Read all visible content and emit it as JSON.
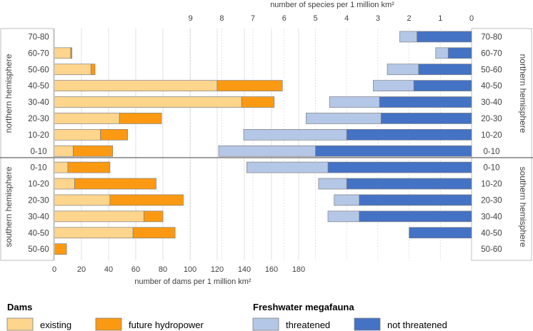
{
  "colors": {
    "existing": "#fdd58d",
    "future": "#fb9a12",
    "threatened": "#b4c7e7",
    "not_threatened": "#4472c4",
    "border": "#7f7f7f"
  },
  "chart_data": {
    "type": "bar",
    "categories": [
      "70-80",
      "60-70",
      "50-60",
      "40-50",
      "30-40",
      "20-30",
      "10-20",
      "0-10",
      "0-10",
      "10-20",
      "20-30",
      "30-40",
      "40-50",
      "50-60"
    ],
    "groups": [
      {
        "name": "northern hemisphere",
        "categories": [
          "70-80",
          "60-70",
          "50-60",
          "40-50",
          "30-40",
          "20-30",
          "10-20",
          "0-10"
        ]
      },
      {
        "name": "southern hemisphere",
        "categories": [
          "0-10",
          "10-20",
          "20-30",
          "30-40",
          "40-50",
          "50-60"
        ]
      }
    ],
    "dams": {
      "axis_label": "number of dams per 1 million km²",
      "xlim": [
        0,
        180
      ],
      "ticks": [
        "0",
        "20",
        "40",
        "60",
        "80",
        "100",
        "120",
        "140",
        "160",
        "180"
      ],
      "legend_title": "Dams",
      "series": [
        {
          "name": "existing",
          "values": [
            0,
            12,
            27,
            120,
            138,
            48,
            34,
            14,
            10,
            15,
            41,
            66,
            58,
            0
          ]
        },
        {
          "name": "future hydropower",
          "values": [
            0,
            1,
            3,
            48,
            24,
            31,
            20,
            29,
            31,
            60,
            54,
            14,
            31,
            9
          ]
        }
      ]
    },
    "megafauna": {
      "axis_label": "number of species per 1 million km²",
      "xlim": [
        0,
        9
      ],
      "direction": "reversed",
      "ticks": [
        "9",
        "8",
        "7",
        "6",
        "5",
        "4",
        "3",
        "2",
        "1",
        "0"
      ],
      "legend_title": "Freshwater megafauna",
      "series": [
        {
          "name": "not threatened",
          "values": [
            1.75,
            0.75,
            1.7,
            1.85,
            2.95,
            2.9,
            4.0,
            5.0,
            4.6,
            4.0,
            3.6,
            3.6,
            2.0,
            0
          ]
        },
        {
          "name": "threatened",
          "values": [
            0.55,
            0.4,
            1.0,
            1.3,
            1.6,
            2.4,
            3.3,
            3.1,
            2.6,
            0.9,
            0.8,
            1.0,
            0,
            0
          ]
        }
      ]
    }
  }
}
